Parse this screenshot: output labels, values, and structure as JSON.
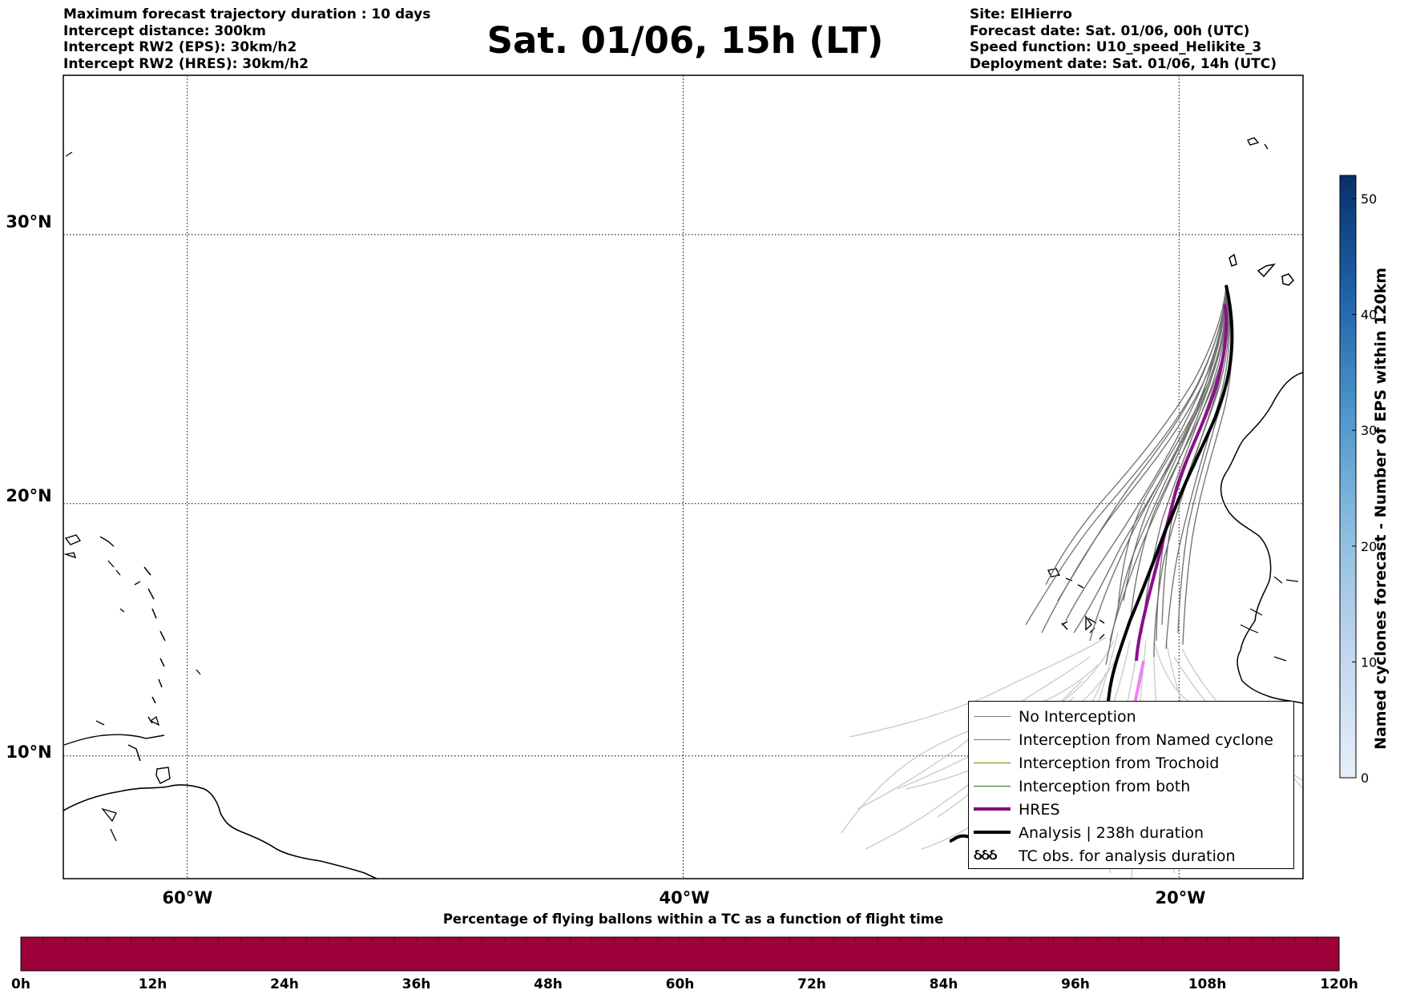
{
  "header_left": [
    "Maximum forecast trajectory duration : 10 days",
    "Intercept distance: 300km",
    "Intercept RW2 (EPS):  30km/h2",
    "Intercept RW2 (HRES): 30km/h2"
  ],
  "title": "Sat. 01/06, 15h (LT)",
  "header_right": [
    "Site: ElHierro",
    "Forecast date: Sat. 01/06, 00h (UTC)",
    "Speed function: U10_speed_Helikite_3",
    "Deployment date: Sat. 01/06, 14h (UTC)"
  ],
  "map": {
    "lat_labels": [
      "30°N",
      "20°N",
      "10°N"
    ],
    "lon_labels": [
      "60°W",
      "40°W",
      "20°W"
    ],
    "gridline_lons": [
      -60,
      -40,
      -20
    ],
    "gridline_lats": [
      30,
      20,
      10
    ],
    "lon_range": [
      -65,
      -15
    ],
    "lat_range": [
      5,
      35.5
    ],
    "track_colors": {
      "no_interception": "#6e6e6e",
      "future": "#cccccc",
      "hres": "#8b0f8b",
      "hres_future": "#ee82ee",
      "analysis": "#000000"
    }
  },
  "legend": {
    "items": [
      {
        "label": "No Interception",
        "color": "#7a7a7a",
        "width": 1
      },
      {
        "label": "Interception from Named cyclone",
        "color": "#e8531f",
        "width": 1
      },
      {
        "label": "Interception from Trochoid",
        "color": "#808000",
        "width": 1
      },
      {
        "label": "Interception from both",
        "color": "#157a15",
        "width": 1
      },
      {
        "label": "HRES",
        "color": "#800080",
        "width": 4
      },
      {
        "label": "Analysis | 238h duration",
        "color": "#000000",
        "width": 4
      }
    ],
    "tc_obs_label": "TC obs. for analysis duration",
    "tc_obs_glyph": "ઠઠઠ"
  },
  "colorbar_right": {
    "label": "Named cyclones forecast - Number of EPS within 120km",
    "ticks": [
      "0",
      "10",
      "20",
      "30",
      "40",
      "50"
    ],
    "min": 0,
    "max": 52,
    "color_low": "#e6eff9",
    "color_high": "#08306b"
  },
  "colorbar_bottom": {
    "title": "Percentage of flying ballons within a TC as a function of flight time",
    "ticks": [
      "0h",
      "12h",
      "24h",
      "36h",
      "48h",
      "60h",
      "72h",
      "84h",
      "96h",
      "108h",
      "120h"
    ],
    "fill_color": "#9e003a"
  }
}
